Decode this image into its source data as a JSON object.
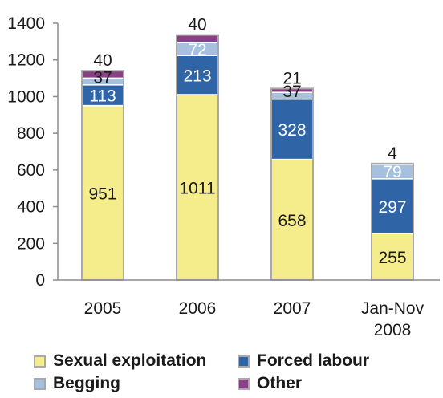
{
  "chart_data": {
    "type": "bar",
    "stacked": true,
    "categories": [
      "2005",
      "2006",
      "2007",
      "Jan-Nov\n2008"
    ],
    "ylim": [
      0,
      1400
    ],
    "yticks": [
      0,
      200,
      400,
      600,
      800,
      1000,
      1200,
      1400
    ],
    "grid": false,
    "legend_position": "bottom",
    "series": [
      {
        "name": "Sexual exploitation",
        "color": "#f5ec8c",
        "label_color": "#1a1a1a",
        "values": [
          951,
          1011,
          658,
          255
        ]
      },
      {
        "name": "Forced labour",
        "color": "#2f64a6",
        "label_color": "#ffffff",
        "values": [
          113,
          213,
          328,
          297
        ]
      },
      {
        "name": "Begging",
        "color": "#a6c1dd",
        "label_color": "#ffffff",
        "values": [
          37,
          72,
          37,
          79
        ]
      },
      {
        "name": "Other",
        "color": "#8a3f86",
        "label_color": "#1a1a1a",
        "values": [
          40,
          40,
          21,
          4
        ]
      }
    ]
  }
}
